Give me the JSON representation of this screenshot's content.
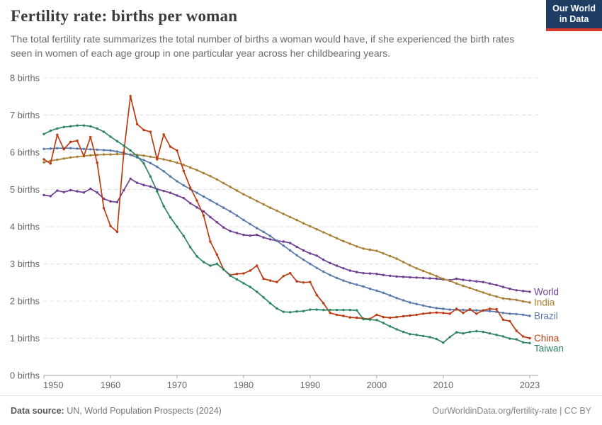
{
  "header": {
    "title": "Fertility rate: births per woman",
    "subtitle": "The total fertility rate summarizes the total number of births a woman would have, if she experienced the birth rates seen in women of each age group in one particular year across her childbearing years.",
    "logo": {
      "line1": "Our World",
      "line2": "in Data"
    }
  },
  "footer": {
    "source_label": "Data source:",
    "source_text": " UN, World Population Prospects (2024)",
    "credit": "OurWorldinData.org/fertility-rate | CC BY"
  },
  "chart_data": {
    "type": "line",
    "title": "Fertility rate: births per woman",
    "xlabel": "",
    "ylabel": "",
    "xlim": [
      1950,
      2023
    ],
    "ylim": [
      0,
      8
    ],
    "grid": "horizontal-dashed",
    "legend_position": "line-end-labels",
    "y_ticks": [
      0,
      1,
      2,
      3,
      4,
      5,
      6,
      7,
      8
    ],
    "y_tick_suffix": " births",
    "x_ticks": [
      1950,
      1960,
      1970,
      1980,
      1990,
      2000,
      2010,
      2023
    ],
    "x": [
      1950,
      1951,
      1952,
      1953,
      1954,
      1955,
      1956,
      1957,
      1958,
      1959,
      1960,
      1961,
      1962,
      1963,
      1964,
      1965,
      1966,
      1967,
      1968,
      1969,
      1970,
      1971,
      1972,
      1973,
      1974,
      1975,
      1976,
      1977,
      1978,
      1979,
      1980,
      1981,
      1982,
      1983,
      1984,
      1985,
      1986,
      1987,
      1988,
      1989,
      1990,
      1991,
      1992,
      1993,
      1994,
      1995,
      1996,
      1997,
      1998,
      1999,
      2000,
      2001,
      2002,
      2003,
      2004,
      2005,
      2006,
      2007,
      2008,
      2009,
      2010,
      2011,
      2012,
      2013,
      2014,
      2015,
      2016,
      2017,
      2018,
      2019,
      2020,
      2021,
      2022,
      2023
    ],
    "series": [
      {
        "name": "World",
        "color": "#6D3E91",
        "values": [
          4.85,
          4.82,
          4.97,
          4.93,
          4.98,
          4.95,
          4.92,
          5.02,
          4.92,
          4.75,
          4.68,
          4.66,
          4.98,
          5.29,
          5.18,
          5.12,
          5.08,
          5.01,
          4.96,
          4.91,
          4.84,
          4.77,
          4.63,
          4.52,
          4.41,
          4.26,
          4.12,
          3.98,
          3.88,
          3.83,
          3.78,
          3.76,
          3.78,
          3.71,
          3.66,
          3.62,
          3.6,
          3.56,
          3.46,
          3.36,
          3.28,
          3.22,
          3.11,
          3.02,
          2.95,
          2.88,
          2.82,
          2.78,
          2.75,
          2.74,
          2.73,
          2.7,
          2.68,
          2.66,
          2.65,
          2.64,
          2.63,
          2.62,
          2.61,
          2.6,
          2.58,
          2.56,
          2.6,
          2.57,
          2.55,
          2.53,
          2.51,
          2.47,
          2.43,
          2.38,
          2.33,
          2.29,
          2.27,
          2.25
        ]
      },
      {
        "name": "India",
        "color": "#A87E33",
        "values": [
          5.73,
          5.77,
          5.8,
          5.83,
          5.86,
          5.88,
          5.9,
          5.92,
          5.93,
          5.94,
          5.94,
          5.95,
          5.95,
          5.94,
          5.93,
          5.91,
          5.88,
          5.85,
          5.81,
          5.77,
          5.72,
          5.66,
          5.59,
          5.52,
          5.44,
          5.36,
          5.27,
          5.17,
          5.07,
          4.97,
          4.87,
          4.78,
          4.69,
          4.6,
          4.51,
          4.43,
          4.34,
          4.26,
          4.18,
          4.09,
          4.01,
          3.93,
          3.85,
          3.77,
          3.69,
          3.61,
          3.54,
          3.47,
          3.41,
          3.38,
          3.35,
          3.28,
          3.21,
          3.14,
          3.05,
          2.96,
          2.88,
          2.81,
          2.74,
          2.67,
          2.6,
          2.54,
          2.47,
          2.41,
          2.35,
          2.29,
          2.23,
          2.17,
          2.12,
          2.07,
          2.05,
          2.03,
          1.99,
          1.96
        ]
      },
      {
        "name": "Brazil",
        "color": "#5878AB",
        "values": [
          6.09,
          6.1,
          6.11,
          6.11,
          6.11,
          6.1,
          6.09,
          6.08,
          6.07,
          6.06,
          6.05,
          6.02,
          5.98,
          5.93,
          5.86,
          5.79,
          5.71,
          5.61,
          5.49,
          5.35,
          5.22,
          5.11,
          5.01,
          4.91,
          4.81,
          4.71,
          4.61,
          4.51,
          4.41,
          4.3,
          4.18,
          4.07,
          3.96,
          3.86,
          3.75,
          3.62,
          3.49,
          3.36,
          3.23,
          3.11,
          3.0,
          2.89,
          2.79,
          2.7,
          2.62,
          2.55,
          2.49,
          2.44,
          2.39,
          2.33,
          2.28,
          2.22,
          2.15,
          2.08,
          2.02,
          1.96,
          1.92,
          1.88,
          1.84,
          1.81,
          1.79,
          1.77,
          1.77,
          1.76,
          1.76,
          1.75,
          1.74,
          1.73,
          1.71,
          1.68,
          1.66,
          1.65,
          1.63,
          1.6
        ]
      },
      {
        "name": "China",
        "color": "#BC3A10",
        "values": [
          5.81,
          5.7,
          6.47,
          6.08,
          6.28,
          6.31,
          5.9,
          6.41,
          5.72,
          4.5,
          4.02,
          3.86,
          6.0,
          7.51,
          6.76,
          6.6,
          6.55,
          5.81,
          6.48,
          6.15,
          6.05,
          5.5,
          5.05,
          4.7,
          4.3,
          3.6,
          3.25,
          2.85,
          2.7,
          2.73,
          2.74,
          2.82,
          2.95,
          2.6,
          2.55,
          2.51,
          2.67,
          2.75,
          2.53,
          2.5,
          2.51,
          2.16,
          1.94,
          1.68,
          1.63,
          1.6,
          1.56,
          1.55,
          1.53,
          1.52,
          1.63,
          1.57,
          1.55,
          1.57,
          1.59,
          1.61,
          1.63,
          1.66,
          1.68,
          1.69,
          1.68,
          1.66,
          1.79,
          1.68,
          1.78,
          1.66,
          1.75,
          1.79,
          1.78,
          1.5,
          1.46,
          1.2,
          1.05,
          1.0
        ]
      },
      {
        "name": "Taiwan",
        "color": "#2C8465",
        "values": [
          6.49,
          6.58,
          6.64,
          6.68,
          6.7,
          6.72,
          6.72,
          6.7,
          6.64,
          6.55,
          6.42,
          6.3,
          6.18,
          6.05,
          5.9,
          5.7,
          5.35,
          4.95,
          4.55,
          4.25,
          4.0,
          3.75,
          3.45,
          3.2,
          3.05,
          2.95,
          3.0,
          2.85,
          2.68,
          2.58,
          2.48,
          2.38,
          2.25,
          2.1,
          1.94,
          1.8,
          1.71,
          1.7,
          1.72,
          1.73,
          1.77,
          1.77,
          1.76,
          1.76,
          1.76,
          1.76,
          1.76,
          1.75,
          1.51,
          1.5,
          1.49,
          1.41,
          1.32,
          1.24,
          1.17,
          1.11,
          1.09,
          1.06,
          1.03,
          0.98,
          0.88,
          1.03,
          1.16,
          1.13,
          1.17,
          1.19,
          1.17,
          1.13,
          1.09,
          1.05,
          0.99,
          0.97,
          0.89,
          0.87
        ]
      }
    ]
  }
}
